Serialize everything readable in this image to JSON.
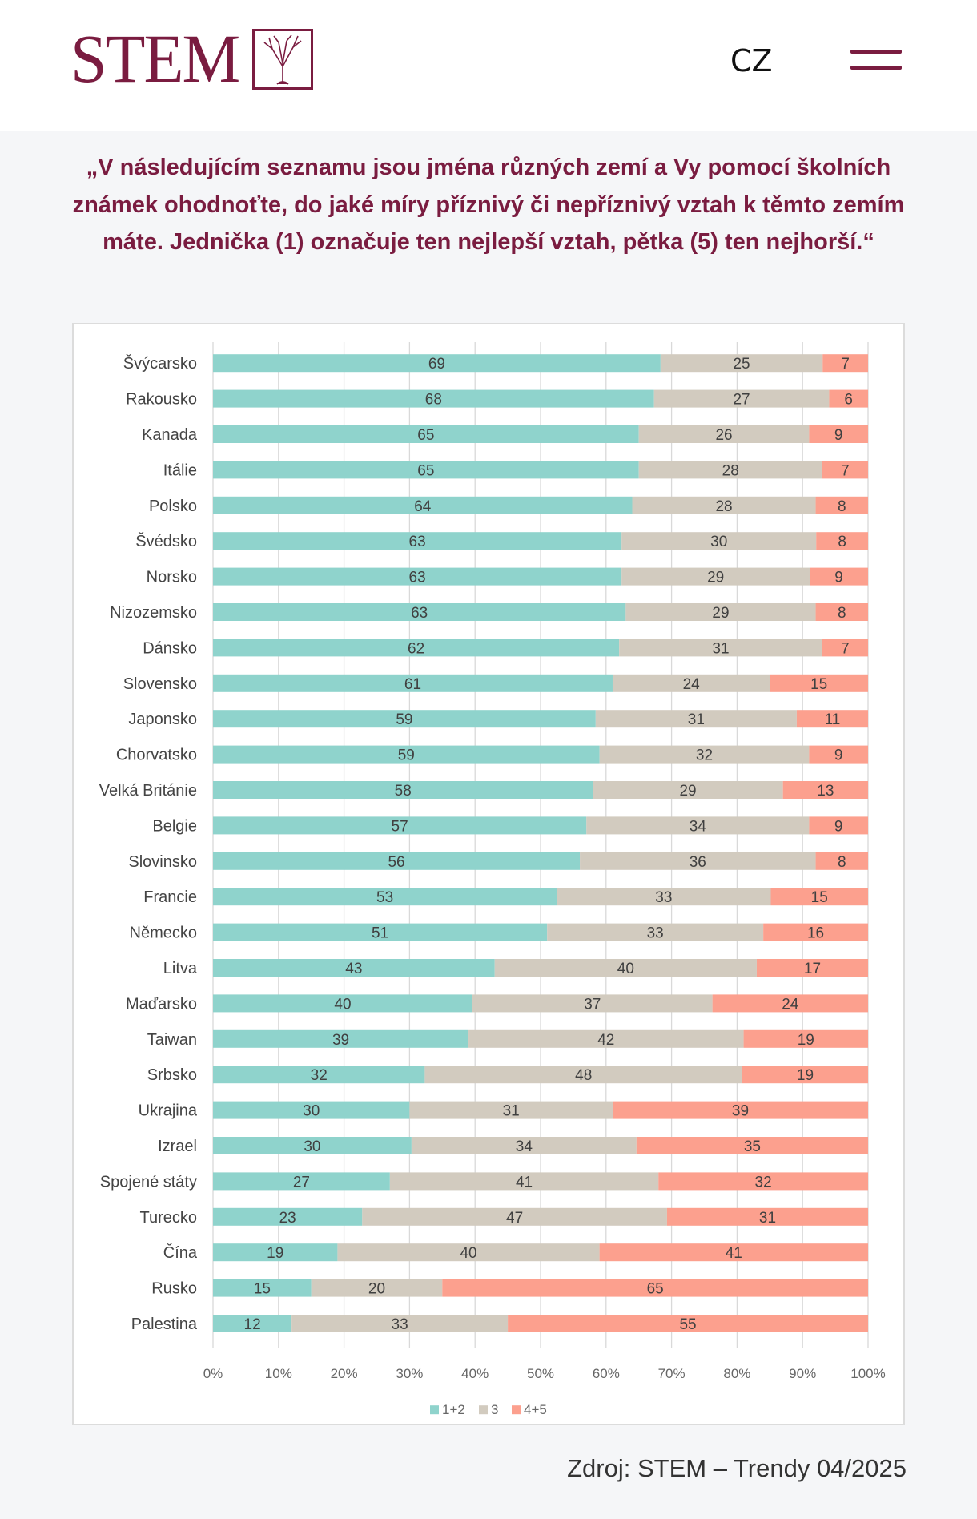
{
  "header": {
    "logo_text": "STEM",
    "lang": "CZ",
    "brand_color": "#7a1c40"
  },
  "question": "„V následujícím seznamu jsou jména různých zemí a Vy pomocí školních známek ohodnoťte, do jaké míry příznivý či nepříznivý vztah k těmto zemím máte. Jednička (1) označuje ten nejlepší vztah, pětka (5) ten nejhorší.“",
  "source": "Zdroj: STEM – Trendy 04/2025",
  "chart_data": {
    "type": "bar",
    "orientation": "horizontal",
    "stacked": "percent",
    "title": "",
    "xlabel": "",
    "ylabel": "",
    "xlim": [
      0,
      100
    ],
    "x_ticks": [
      "0%",
      "10%",
      "20%",
      "30%",
      "40%",
      "50%",
      "60%",
      "70%",
      "80%",
      "90%",
      "100%"
    ],
    "grid": true,
    "legend_position": "bottom",
    "categories": [
      "Švýcarsko",
      "Rakousko",
      "Kanada",
      "Itálie",
      "Polsko",
      "Švédsko",
      "Norsko",
      "Nizozemsko",
      "Dánsko",
      "Slovensko",
      "Japonsko",
      "Chorvatsko",
      "Velká Británie",
      "Belgie",
      "Slovinsko",
      "Francie",
      "Německo",
      "Litva",
      "Maďarsko",
      "Taiwan",
      "Srbsko",
      "Ukrajina",
      "Izrael",
      "Spojené státy",
      "Turecko",
      "Čína",
      "Rusko",
      "Palestina"
    ],
    "series": [
      {
        "name": "1+2",
        "color": "#8fd3cc",
        "values": [
          69,
          68,
          65,
          65,
          64,
          63,
          63,
          63,
          62,
          61,
          59,
          59,
          58,
          57,
          56,
          53,
          51,
          43,
          40,
          39,
          32,
          30,
          30,
          27,
          23,
          19,
          15,
          12
        ]
      },
      {
        "name": "3",
        "color": "#d2cbbf",
        "values": [
          25,
          27,
          26,
          28,
          28,
          30,
          29,
          29,
          31,
          24,
          31,
          32,
          29,
          34,
          36,
          33,
          33,
          40,
          37,
          42,
          48,
          31,
          34,
          41,
          47,
          40,
          20,
          33
        ]
      },
      {
        "name": "4+5",
        "color": "#fca08e",
        "values": [
          7,
          6,
          9,
          7,
          8,
          8,
          9,
          8,
          7,
          15,
          11,
          9,
          13,
          9,
          8,
          15,
          16,
          17,
          24,
          19,
          19,
          39,
          35,
          32,
          31,
          41,
          65,
          55
        ]
      }
    ]
  }
}
